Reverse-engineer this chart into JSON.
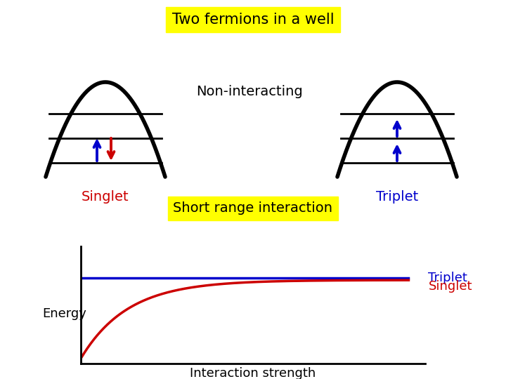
{
  "title": "Two fermions in a well",
  "title_bg": "#ffff00",
  "short_range_label": "Short range interaction",
  "short_range_bg": "#ffff00",
  "non_interacting_label": "Non-interacting",
  "singlet_label": "Singlet",
  "singlet_color": "#cc0000",
  "triplet_label": "Triplet",
  "triplet_color": "#0000cc",
  "energy_label": "Energy",
  "interaction_label": "Interaction strength",
  "bg_color": "#ffffff"
}
